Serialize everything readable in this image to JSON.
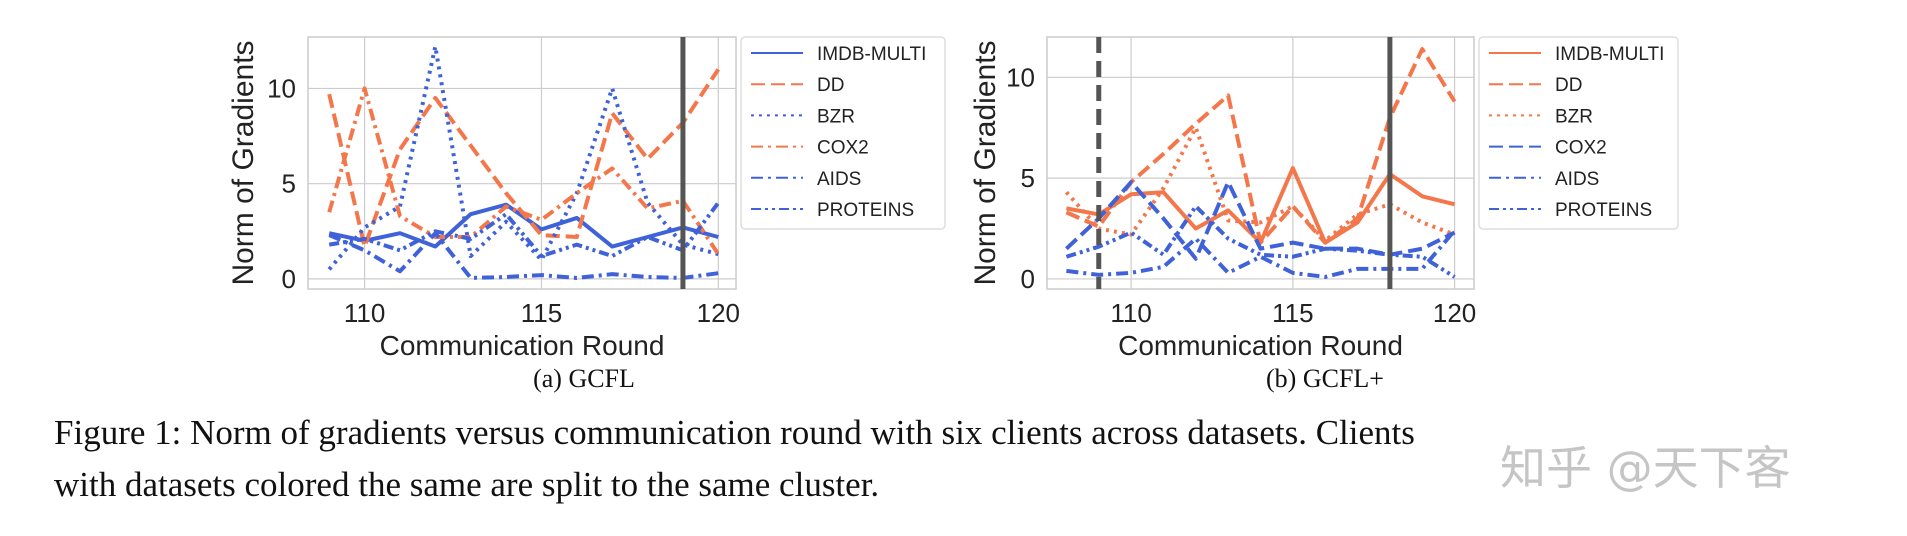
{
  "colors": {
    "blue": "#3f62d9",
    "orange": "#f4774b",
    "vline": "#555555",
    "grid": "#cccccc"
  },
  "chart_data": [
    {
      "type": "line",
      "id": "a",
      "caption": "(a) GCFL",
      "xlabel": "Communication Round",
      "ylabel": "Norm of Gradients",
      "xlim": [
        108.4,
        120.5
      ],
      "ylim": [
        -0.53,
        12.7
      ],
      "xticks": [
        110,
        115,
        120
      ],
      "yticks": [
        0,
        5,
        10
      ],
      "grid": true,
      "legend": "right-outside",
      "x": [
        109,
        110,
        111,
        112,
        113,
        114,
        115,
        116,
        117,
        118,
        119,
        120
      ],
      "vlines": [
        {
          "x": 119,
          "style": "solid"
        }
      ],
      "series": [
        {
          "name": "IMDB-MULTI",
          "color": "blue",
          "style": "solid",
          "values": [
            2.4,
            2.0,
            2.4,
            1.7,
            3.4,
            3.9,
            2.6,
            3.2,
            1.7,
            2.2,
            2.7,
            2.2
          ]
        },
        {
          "name": "DD",
          "color": "orange",
          "style": "dashed",
          "values": [
            9.7,
            1.7,
            6.8,
            9.5,
            7.0,
            4.5,
            2.3,
            2.2,
            8.7,
            6.3,
            8.2,
            11.0
          ]
        },
        {
          "name": "BZR",
          "color": "blue",
          "style": "dotted",
          "values": [
            0.5,
            2.7,
            3.8,
            12.2,
            1.2,
            3.0,
            1.0,
            4.5,
            10.0,
            4.0,
            1.8,
            1.3
          ]
        },
        {
          "name": "COX2",
          "color": "orange",
          "style": "dashdot",
          "values": [
            3.5,
            10.0,
            3.3,
            2.2,
            2.2,
            3.8,
            3.1,
            4.5,
            5.8,
            3.7,
            4.1,
            1.3
          ]
        },
        {
          "name": "AIDS",
          "color": "blue",
          "style": "dashdot",
          "values": [
            2.3,
            1.5,
            0.4,
            2.4,
            0.05,
            0.1,
            0.2,
            0.05,
            0.25,
            0.1,
            0.05,
            0.3
          ]
        },
        {
          "name": "PROTEINS",
          "color": "blue",
          "style": "dashdotdot",
          "values": [
            1.8,
            2.1,
            1.5,
            2.5,
            2.1,
            3.4,
            1.2,
            1.8,
            1.2,
            2.2,
            1.5,
            4.0
          ]
        }
      ]
    },
    {
      "type": "line",
      "id": "b",
      "caption": "(b) GCFL+",
      "xlabel": "Communication Round",
      "ylabel": "Norm of Gradients",
      "xlim": [
        107.4,
        120.6
      ],
      "ylim": [
        -0.5,
        12.0
      ],
      "xticks": [
        110,
        115,
        120
      ],
      "yticks": [
        0,
        5,
        10
      ],
      "grid": true,
      "legend": "right-outside",
      "x": [
        108,
        109,
        110,
        111,
        112,
        113,
        114,
        115,
        116,
        117,
        118,
        119,
        120
      ],
      "vlines": [
        {
          "x": 109,
          "style": "dashed"
        },
        {
          "x": 118,
          "style": "solid"
        }
      ],
      "series": [
        {
          "name": "IMDB-MULTI",
          "color": "orange",
          "style": "solid",
          "values": [
            3.5,
            3.2,
            4.2,
            4.3,
            2.5,
            3.4,
            1.8,
            5.5,
            1.8,
            2.8,
            5.2,
            4.1,
            3.7
          ]
        },
        {
          "name": "DD",
          "color": "orange",
          "style": "dashed",
          "values": [
            3.3,
            2.6,
            4.8,
            6.2,
            7.7,
            9.1,
            1.8,
            3.6,
            1.8,
            3.0,
            8.0,
            11.4,
            8.8
          ]
        },
        {
          "name": "BZR",
          "color": "orange",
          "style": "dotted",
          "values": [
            4.3,
            2.5,
            2.2,
            4.5,
            7.5,
            2.9,
            2.8,
            3.6,
            1.9,
            3.2,
            3.7,
            2.8,
            2.2
          ]
        },
        {
          "name": "COX2",
          "color": "blue",
          "style": "dashed",
          "values": [
            1.5,
            3.0,
            4.8,
            3.0,
            1.0,
            4.8,
            1.5,
            1.8,
            1.5,
            1.5,
            1.2,
            1.5,
            2.3
          ]
        },
        {
          "name": "AIDS",
          "color": "blue",
          "style": "dashdot",
          "values": [
            0.4,
            0.2,
            0.3,
            0.6,
            2.0,
            0.3,
            1.1,
            0.3,
            0.1,
            0.5,
            0.5,
            0.5,
            2.4
          ]
        },
        {
          "name": "PROTEINS",
          "color": "blue",
          "style": "dashdotdot",
          "values": [
            1.1,
            1.6,
            2.3,
            1.2,
            3.6,
            2.0,
            1.2,
            1.1,
            1.5,
            1.4,
            1.2,
            1.1,
            0.1
          ]
        }
      ]
    }
  ],
  "caption": {
    "line1": "Figure 1: Norm of gradients versus communication round with six clients across datasets. Clients",
    "line2": "with datasets colored the same are split to the same cluster."
  },
  "watermark": "知乎 @天下客"
}
